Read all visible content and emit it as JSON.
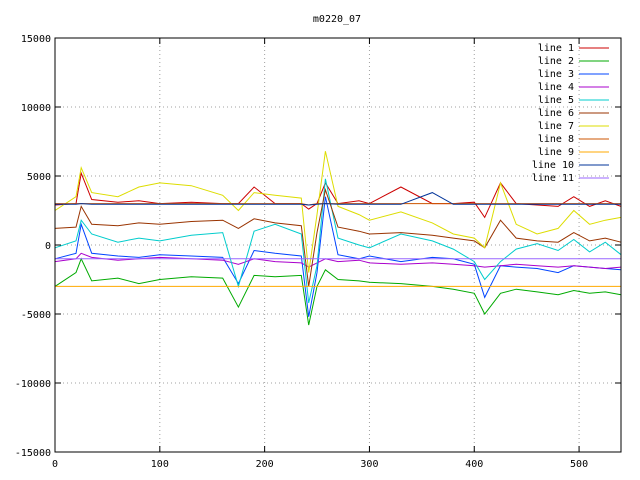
{
  "chart_data": {
    "type": "line",
    "title": "m0220_07",
    "xlabel": "",
    "ylabel": "",
    "xlim": [
      0,
      540
    ],
    "ylim": [
      -15000,
      15000
    ],
    "grid": true,
    "legend_position": "top-right",
    "x_ticks": [
      0,
      100,
      200,
      300,
      400,
      500
    ],
    "y_ticks": [
      -15000,
      -10000,
      -5000,
      0,
      5000,
      10000,
      15000
    ],
    "x_tick_labels": [
      "0",
      "100",
      "200",
      "300",
      "400",
      "500"
    ],
    "y_tick_labels": [
      "-15000",
      "-10000",
      "-5000",
      "0",
      "5000",
      "10000",
      "15000"
    ],
    "x": [
      0,
      20,
      25,
      35,
      60,
      80,
      100,
      130,
      160,
      175,
      190,
      210,
      235,
      242,
      250,
      258,
      270,
      290,
      300,
      330,
      360,
      380,
      400,
      410,
      425,
      440,
      460,
      480,
      495,
      510,
      525,
      540
    ],
    "series": [
      {
        "name": "line 1",
        "color": "#cc0000",
        "values": [
          2900,
          3000,
          5200,
          3300,
          3100,
          3200,
          3000,
          3100,
          3000,
          3000,
          4200,
          3000,
          3000,
          2600,
          3000,
          4500,
          3000,
          3200,
          3000,
          4200,
          3000,
          3000,
          3100,
          2000,
          4500,
          3000,
          2900,
          2800,
          3500,
          2800,
          3200,
          2800
        ]
      },
      {
        "name": "line 2",
        "color": "#00aa00",
        "values": [
          -3000,
          -2000,
          -1000,
          -2600,
          -2400,
          -2800,
          -2500,
          -2300,
          -2400,
          -4500,
          -2200,
          -2300,
          -2200,
          -5800,
          -3000,
          -1800,
          -2500,
          -2600,
          -2700,
          -2800,
          -3000,
          -3200,
          -3500,
          -5000,
          -3500,
          -3200,
          -3400,
          -3600,
          -3300,
          -3500,
          -3400,
          -3600
        ]
      },
      {
        "name": "line 3",
        "color": "#0044ff",
        "values": [
          -1000,
          -600,
          1500,
          -600,
          -800,
          -900,
          -700,
          -800,
          -900,
          -2800,
          -400,
          -600,
          -800,
          -5200,
          -2000,
          3500,
          -700,
          -1000,
          -800,
          -1200,
          -900,
          -1000,
          -1400,
          -3800,
          -1500,
          -1600,
          -1700,
          -2000,
          -1500,
          -1600,
          -1700,
          -1800
        ]
      },
      {
        "name": "line 4",
        "color": "#aa00cc",
        "values": [
          -1200,
          -1000,
          -600,
          -900,
          -1100,
          -1000,
          -900,
          -1000,
          -1100,
          -1400,
          -1000,
          -1200,
          -1300,
          -1600,
          -1300,
          -1000,
          -1200,
          -1100,
          -1300,
          -1400,
          -1300,
          -1400,
          -1500,
          -1600,
          -1500,
          -1400,
          -1500,
          -1600,
          -1500,
          -1600,
          -1700,
          -1600
        ]
      },
      {
        "name": "line 5",
        "color": "#00cccc",
        "values": [
          -200,
          300,
          1800,
          800,
          200,
          500,
          300,
          700,
          900,
          -3000,
          1000,
          1500,
          800,
          -4200,
          -1500,
          4800,
          500,
          0,
          -200,
          800,
          300,
          -300,
          -1200,
          -2500,
          -1200,
          -300,
          100,
          -400,
          400,
          -500,
          200,
          -700
        ]
      },
      {
        "name": "line 6",
        "color": "#993300",
        "values": [
          1200,
          1300,
          2800,
          1500,
          1400,
          1600,
          1500,
          1700,
          1800,
          1200,
          1900,
          1600,
          1400,
          -3000,
          900,
          4000,
          1300,
          1000,
          800,
          900,
          700,
          500,
          300,
          -200,
          1800,
          500,
          300,
          200,
          900,
          300,
          500,
          200
        ]
      },
      {
        "name": "line 7",
        "color": "#dddd00",
        "values": [
          2500,
          3500,
          5600,
          3800,
          3500,
          4200,
          4500,
          4300,
          3600,
          2500,
          3800,
          3600,
          3400,
          -2000,
          2200,
          6800,
          2800,
          2200,
          1800,
          2400,
          1600,
          800,
          500,
          -200,
          4500,
          1500,
          800,
          1200,
          2500,
          1500,
          1800,
          2000
        ]
      },
      {
        "name": "line 8",
        "color": "#cc5500",
        "values": [
          3000,
          3000,
          3000,
          3000,
          3000,
          3000,
          3000,
          3000,
          3000,
          3000,
          3000,
          3000,
          3000,
          2900,
          3000,
          3000,
          3000,
          3000,
          3000,
          3000,
          3000,
          3000,
          3000,
          3000,
          3000,
          3000,
          3000,
          3000,
          3000,
          3000,
          3000,
          3000
        ]
      },
      {
        "name": "line 9",
        "color": "#ffaa00",
        "values": [
          -3000,
          -3000,
          -3000,
          -3000,
          -3000,
          -3000,
          -3000,
          -3000,
          -3000,
          -3000,
          -3000,
          -3000,
          -3000,
          -3000,
          -3000,
          -3000,
          -3000,
          -3000,
          -3000,
          -3000,
          -3000,
          -3000,
          -3000,
          -3000,
          -3000,
          -3000,
          -3000,
          -3000,
          -3000,
          -3000,
          -3000,
          -3000
        ]
      },
      {
        "name": "line 10",
        "color": "#003399",
        "values": [
          2950,
          2950,
          3000,
          2950,
          2950,
          2950,
          2950,
          2950,
          2950,
          2950,
          2950,
          2950,
          2950,
          2900,
          2950,
          3000,
          2950,
          2950,
          2950,
          2950,
          3800,
          2950,
          2950,
          2950,
          2950,
          2950,
          2950,
          2950,
          2950,
          2950,
          2950,
          2950
        ]
      },
      {
        "name": "line 11",
        "color": "#9966ff",
        "values": [
          -1000,
          -1000,
          -1000,
          -1000,
          -1000,
          -1000,
          -1000,
          -1000,
          -1000,
          -1000,
          -1000,
          -1000,
          -1000,
          -1000,
          -1000,
          -1000,
          -1000,
          -1000,
          -1000,
          -1000,
          -1000,
          -1000,
          -1000,
          -1000,
          -1000,
          -1000,
          -1000,
          -1000,
          -1000,
          -1000,
          -1000,
          -1000
        ]
      }
    ]
  }
}
